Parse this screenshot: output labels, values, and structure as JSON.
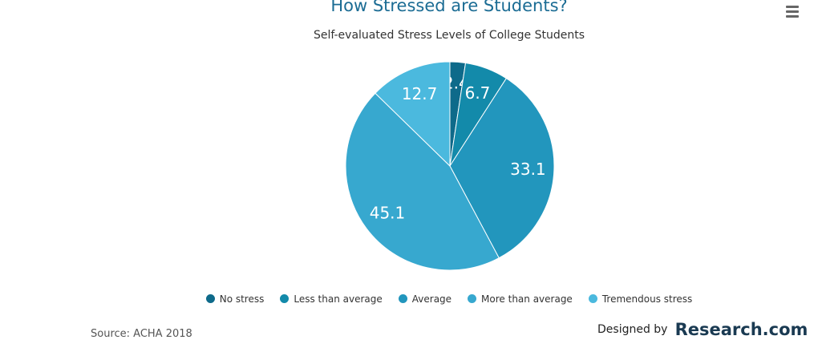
{
  "chart_data": {
    "type": "pie",
    "title": "How Stressed are Students?",
    "subtitle": "Self-evaluated Stress Levels of College Students",
    "categories": [
      "No stress",
      "Less than average",
      "Average",
      "More than average",
      "Tremendous stress"
    ],
    "values": [
      2.4,
      6.7,
      33.1,
      45.1,
      12.7
    ],
    "data_labels": [
      "2.4",
      "6.7",
      "33.1",
      "45.1",
      "12.7"
    ],
    "colors": [
      "#0e6a8a",
      "#138aaa",
      "#2296bd",
      "#37a8cf",
      "#4bb9de"
    ],
    "legend_placement": "bottom"
  },
  "source": "Source: ACHA 2018",
  "credit": {
    "prefix": "Designed by",
    "brand": "Research.com"
  },
  "icons": {
    "menu": "hamburger-menu-icon"
  }
}
